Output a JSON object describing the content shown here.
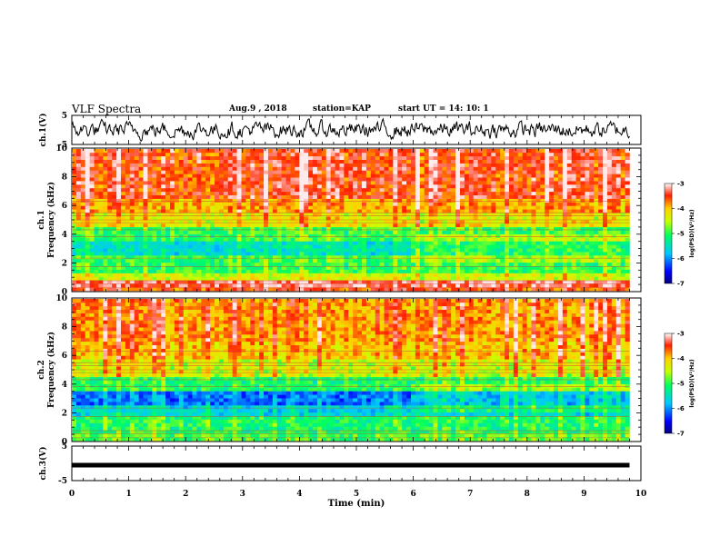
{
  "header": {
    "title": "VLF Spectra",
    "date": "Aug.9  , 2018",
    "station": "station=KAP",
    "start": "start  UT  =   14: 10: 1"
  },
  "chart_data": [
    {
      "type": "line",
      "panel": "ch1-waveform",
      "ylabel": "ch.1(V)",
      "ylim": [
        -5,
        5
      ],
      "yticks": [
        "5",
        "-5"
      ],
      "xlim": [
        0,
        10
      ],
      "description": "noisy voltage trace oscillating roughly between -4 and 4 V across 0–9.8 min"
    },
    {
      "type": "heatmap",
      "panel": "ch1-spectrogram",
      "ylabel": "ch.1\nFrequency (kHz)",
      "ylim": [
        0,
        10
      ],
      "yticks": [
        "0",
        "2",
        "4",
        "6",
        "8",
        "10"
      ],
      "xlim": [
        0,
        10
      ],
      "data_end_min": 9.8,
      "colorbar": {
        "label": "log(PSD)(V²/Hz)",
        "range": [
          -7,
          -3
        ],
        "ticks": [
          "-3",
          "-4",
          "-5",
          "-6",
          "-7"
        ]
      },
      "bands": [
        {
          "f": [
            0,
            0.3
          ],
          "level": -3.6
        },
        {
          "f": [
            0.3,
            0.7
          ],
          "level": -3.3
        },
        {
          "f": [
            0.7,
            1.3
          ],
          "level": -4.4
        },
        {
          "f": [
            1.3,
            2.6
          ],
          "level": -5.0
        },
        {
          "f": [
            2.6,
            3.6
          ],
          "level": -5.5
        },
        {
          "f": [
            3.6,
            4.6
          ],
          "level": -5.0
        },
        {
          "f": [
            4.6,
            5.4
          ],
          "level": -4.3
        },
        {
          "f": [
            5.4,
            6.6
          ],
          "level": -3.9
        },
        {
          "f": [
            6.6,
            10
          ],
          "level": -3.5
        }
      ]
    },
    {
      "type": "heatmap",
      "panel": "ch2-spectrogram",
      "ylabel": "ch.2\nFrequency (kHz)",
      "ylim": [
        0,
        10
      ],
      "yticks": [
        "0",
        "2",
        "4",
        "6",
        "8",
        "10"
      ],
      "xlim": [
        0,
        10
      ],
      "data_end_min": 9.8,
      "colorbar": {
        "label": "log(PSD)(V²/Hz)",
        "range": [
          -7,
          -3
        ],
        "ticks": [
          "-3",
          "-4",
          "-5",
          "-6",
          "-7"
        ]
      },
      "bands": [
        {
          "f": [
            0,
            0.6
          ],
          "level": -4.9
        },
        {
          "f": [
            0.6,
            1.8
          ],
          "level": -5.1
        },
        {
          "f": [
            1.8,
            2.4
          ],
          "level": -5.6
        },
        {
          "f": [
            2.4,
            3.6
          ],
          "level": -6.1
        },
        {
          "f": [
            3.6,
            4.6
          ],
          "level": -5.1
        },
        {
          "f": [
            4.6,
            5.8
          ],
          "level": -4.4
        },
        {
          "f": [
            5.8,
            7.0
          ],
          "level": -4.0
        },
        {
          "f": [
            7.0,
            10
          ],
          "level": -3.8
        }
      ]
    },
    {
      "type": "line",
      "panel": "ch3-waveform",
      "ylabel": "ch.3(V)",
      "ylim": [
        -5,
        5
      ],
      "yticks": [
        "5",
        "-5"
      ],
      "xlim": [
        0,
        10
      ],
      "constant_value": 0,
      "xlabel": "Time  (min)",
      "xticks": [
        "0",
        "1",
        "2",
        "3",
        "4",
        "5",
        "6",
        "7",
        "8",
        "9",
        "10"
      ]
    }
  ]
}
